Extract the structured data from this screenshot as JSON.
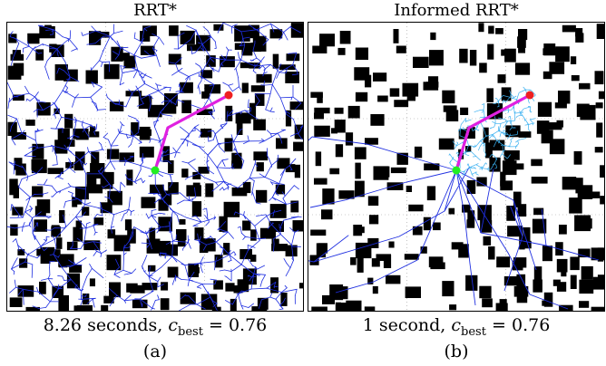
{
  "panels": [
    {
      "title": "RRT*",
      "caption_prefix": "8.26 seconds, ",
      "cost_symbol": "c",
      "cost_subscript": "best",
      "cost_value": "= 0.76",
      "sublabel": "(a)",
      "planner": "rrt-star",
      "seed": 11
    },
    {
      "title": "Informed RRT*",
      "caption_prefix": "1 second, ",
      "cost_symbol": "c",
      "cost_subscript": "best",
      "cost_value": "= 0.76",
      "sublabel": "(b)",
      "planner": "informed-rrt-star",
      "seed": 29
    }
  ],
  "colors": {
    "obstacle": "#000000",
    "tree_edge": "#1f2fe0",
    "ellipse_tree": "#3ab0f0",
    "solution_path": "#e020e0",
    "start": "#22ee22",
    "goal": "#ee2020",
    "grid": "#9a9a9a"
  }
}
